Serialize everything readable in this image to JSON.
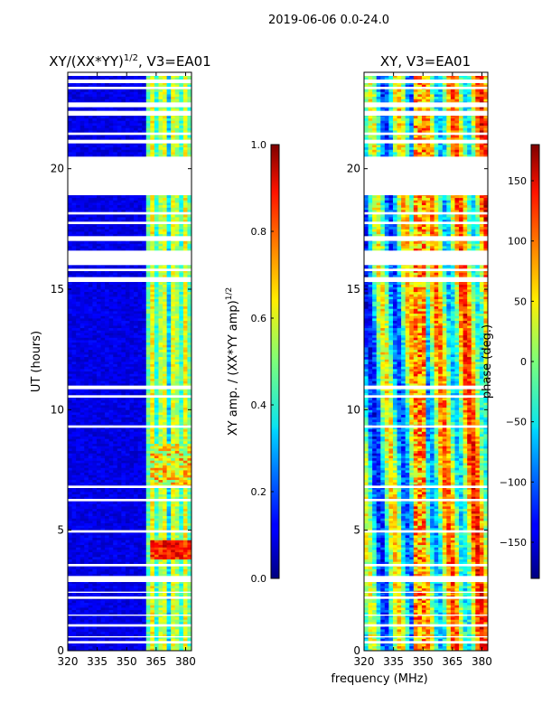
{
  "figure_title": "2019-06-06 0.0-24.0",
  "chart_data": [
    {
      "type": "heatmap",
      "title_main": "XY/(XX*YY)",
      "title_sup": "1/2",
      "title_rest": ", V3=EA01",
      "xlabel": "",
      "ylabel": "UT (hours)",
      "xlim": [
        320,
        383
      ],
      "ylim": [
        0,
        24
      ],
      "xticks": [
        320,
        335,
        350,
        365,
        380
      ],
      "yticks": [
        0,
        5,
        10,
        15,
        20
      ],
      "colorbar": {
        "label_main": "XY amp. / (XX*YY amp)",
        "label_sup": "1/2",
        "range": [
          0.0,
          1.0
        ],
        "ticks": [
          "0.0",
          "0.2",
          "0.4",
          "0.6",
          "0.8",
          "1.0"
        ],
        "tick_values": [
          0.0,
          0.2,
          0.4,
          0.6,
          0.8,
          1.0
        ],
        "colormap": "jet"
      },
      "missing_data_hours": [
        [
          0.3,
          0.4
        ],
        [
          0.55,
          0.6
        ],
        [
          1.0,
          1.1
        ],
        [
          1.45,
          1.5
        ],
        [
          2.15,
          2.25
        ],
        [
          2.4,
          2.45
        ],
        [
          2.85,
          3.1
        ],
        [
          3.5,
          3.6
        ],
        [
          4.9,
          5.0
        ],
        [
          6.2,
          6.3
        ],
        [
          6.75,
          6.85
        ],
        [
          9.25,
          9.35
        ],
        [
          10.5,
          10.6
        ],
        [
          10.85,
          11.0
        ],
        [
          15.3,
          15.5
        ],
        [
          15.75,
          15.85
        ],
        [
          16.0,
          16.6
        ],
        [
          17.0,
          17.2
        ],
        [
          17.7,
          17.8
        ],
        [
          18.1,
          18.2
        ],
        [
          18.9,
          20.5
        ],
        [
          21.05,
          21.2
        ],
        [
          21.4,
          21.5
        ],
        [
          22.2,
          22.4
        ],
        [
          22.55,
          22.75
        ],
        [
          23.3,
          23.4
        ],
        [
          23.55,
          23.7
        ],
        [
          23.85,
          24.0
        ]
      ]
    },
    {
      "type": "heatmap",
      "title_main": "XY, V3=EA01",
      "xlabel": "frequency (MHz)",
      "ylabel": "",
      "xlim": [
        320,
        383
      ],
      "ylim": [
        0,
        24
      ],
      "xticks": [
        320,
        335,
        350,
        365,
        380
      ],
      "yticks": [
        0,
        5,
        10,
        15,
        20
      ],
      "colorbar": {
        "label_main": "phase (deg.)",
        "range": [
          -180,
          180
        ],
        "ticks": [
          "150",
          "100",
          "50",
          "0",
          "−50",
          "−100",
          "−150"
        ],
        "tick_values": [
          150,
          100,
          50,
          0,
          -50,
          -100,
          -150
        ],
        "colormap": "jet"
      },
      "missing_data_hours": [
        [
          0.3,
          0.4
        ],
        [
          0.55,
          0.6
        ],
        [
          1.0,
          1.1
        ],
        [
          1.45,
          1.5
        ],
        [
          2.15,
          2.25
        ],
        [
          2.4,
          2.45
        ],
        [
          2.85,
          3.1
        ],
        [
          3.5,
          3.6
        ],
        [
          4.9,
          5.0
        ],
        [
          6.2,
          6.3
        ],
        [
          6.75,
          6.85
        ],
        [
          9.25,
          9.35
        ],
        [
          10.5,
          10.6
        ],
        [
          10.85,
          11.0
        ],
        [
          15.3,
          15.5
        ],
        [
          15.75,
          15.85
        ],
        [
          16.0,
          16.6
        ],
        [
          17.0,
          17.2
        ],
        [
          17.7,
          17.8
        ],
        [
          18.1,
          18.2
        ],
        [
          18.9,
          20.5
        ],
        [
          21.05,
          21.2
        ],
        [
          21.4,
          21.5
        ],
        [
          22.2,
          22.4
        ],
        [
          22.55,
          22.75
        ],
        [
          23.3,
          23.4
        ],
        [
          23.55,
          23.7
        ],
        [
          23.85,
          24.0
        ]
      ]
    }
  ]
}
